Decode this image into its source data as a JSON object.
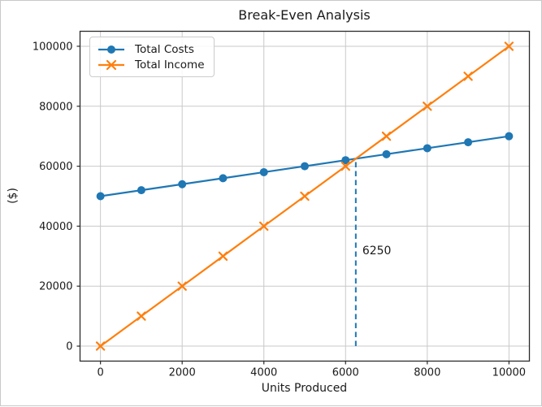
{
  "figure": {
    "background": "#ffffff",
    "border_color": "#c9c9c9"
  },
  "chart_data": {
    "type": "line",
    "title": "Break-Even Analysis",
    "xlabel": "Units Produced",
    "ylabel": "($)",
    "x": [
      0,
      1000,
      2000,
      3000,
      4000,
      5000,
      6000,
      7000,
      8000,
      9000,
      10000
    ],
    "series": [
      {
        "name": "Total Costs",
        "color": "#1f77b4",
        "marker": "circle",
        "values": [
          50000,
          52000,
          54000,
          56000,
          58000,
          60000,
          62000,
          64000,
          66000,
          68000,
          70000
        ]
      },
      {
        "name": "Total Income",
        "color": "#ff7f0e",
        "marker": "x",
        "values": [
          0,
          10000,
          20000,
          30000,
          40000,
          50000,
          60000,
          70000,
          80000,
          90000,
          100000
        ]
      }
    ],
    "xlim": [
      -500,
      10500
    ],
    "ylim": [
      -5000,
      105000
    ],
    "xticks": [
      0,
      2000,
      4000,
      6000,
      8000,
      10000
    ],
    "yticks": [
      0,
      20000,
      40000,
      60000,
      80000,
      100000
    ],
    "grid": true,
    "legend": {
      "position": "upper left",
      "entries": [
        "Total Costs",
        "Total Income"
      ]
    },
    "vlines": [
      {
        "x": 6250,
        "y_from": 0,
        "y_to": 62500,
        "style": "dashed",
        "color": "#1f77b4"
      }
    ],
    "annotations": [
      {
        "text": "6250",
        "x": 6250,
        "y": 32000
      }
    ],
    "styles": {
      "grid_color": "#c9c9c9",
      "spine_color": "#2b2b2b",
      "text_color": "#1a1a1a",
      "tick_font_px": 13,
      "legend_border": "#cccccc"
    }
  }
}
